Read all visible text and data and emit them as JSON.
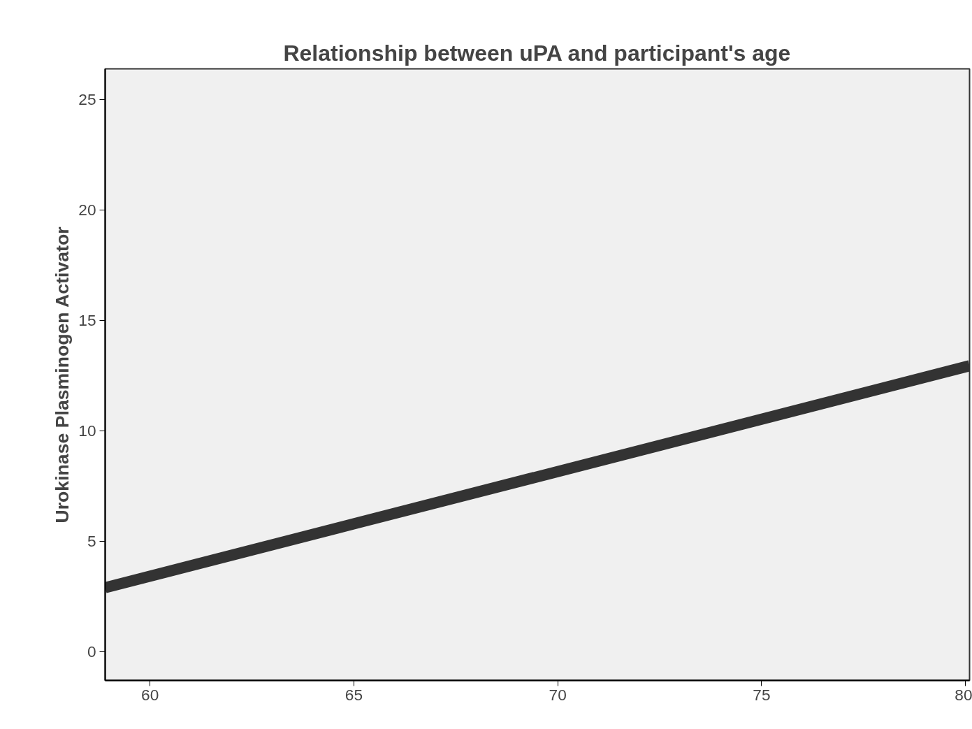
{
  "chart_data": {
    "type": "line",
    "title": "Relationship between uPA and participant's age",
    "ylabel": "Urokinase Plasminogen Activator",
    "x": [
      58.9,
      80.1
    ],
    "series": [
      {
        "color": "#333333",
        "values": [
          2.9,
          12.95
        ]
      }
    ],
    "xlim": [
      58.9,
      80.1
    ],
    "ylim": [
      -1.3,
      26.4
    ],
    "xticks": [
      60,
      65,
      70,
      75,
      80
    ],
    "yticks": [
      0,
      5,
      10,
      15,
      20,
      25
    ],
    "grid": false,
    "marker": "none",
    "line_style": "solid"
  }
}
